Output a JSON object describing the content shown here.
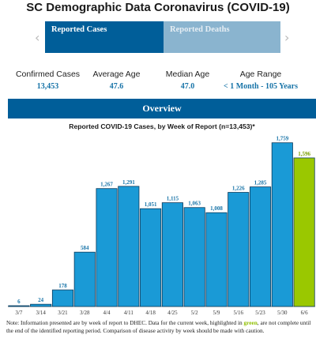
{
  "page_title": "SC Demographic Data Coronavirus (COVID-19)",
  "tabs": [
    {
      "label": "Reported Cases",
      "active": true
    },
    {
      "label": "Reported Deaths",
      "active": false
    }
  ],
  "icons": {
    "prev": "chevron-left-icon",
    "next": "chevron-right-icon"
  },
  "stats": [
    {
      "label": "Confirmed Cases",
      "value": "13,453"
    },
    {
      "label": "Average Age",
      "value": "47.6"
    },
    {
      "label": "Median Age",
      "value": "47.0"
    },
    {
      "label": "Age Range",
      "value": "< 1 Month - 105 Years"
    }
  ],
  "section_header": "Overview",
  "colors": {
    "primary": "#005e99",
    "bar": "#1a9ad6",
    "bar_highlight": "#9ac800",
    "label": "#1874a8"
  },
  "chart_data": {
    "type": "bar",
    "title": "Reported COVID-19 Cases, by Week of Report (n=13,453)*",
    "categories": [
      "3/7",
      "3/14",
      "3/21",
      "3/28",
      "4/4",
      "4/11",
      "4/18",
      "4/25",
      "5/2",
      "5/9",
      "5/16",
      "5/23",
      "5/30",
      "6/6"
    ],
    "values": [
      6,
      24,
      178,
      584,
      1267,
      1291,
      1051,
      1115,
      1063,
      1008,
      1226,
      1285,
      1759,
      1596
    ],
    "value_labels": [
      "6",
      "24",
      "178",
      "584",
      "1,267",
      "1,291",
      "1,051",
      "1,115",
      "1,063",
      "1,008",
      "1,226",
      "1,285",
      "1,759",
      "1,596"
    ],
    "highlight_index": 13,
    "ylim": [
      0,
      1850
    ],
    "grid": false,
    "xlabel": "",
    "ylabel": ""
  },
  "note": {
    "before": "Note: Information presented are by week of report to DHEC. Data for the current week, highlighted in ",
    "highlight": "green",
    "after": ", are not complete until the end of the identified reporting period. Comparison of disease activity by week should be made with caution."
  }
}
